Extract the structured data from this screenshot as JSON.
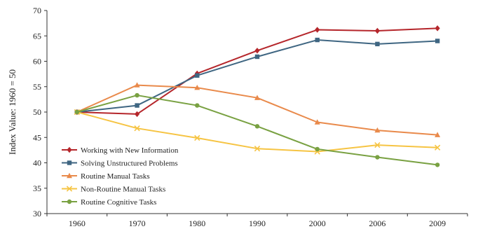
{
  "chart_data": {
    "type": "line",
    "title": "",
    "xlabel": "",
    "ylabel": "Index Value: 1960 = 50",
    "categories": [
      "1960",
      "1970",
      "1980",
      "1990",
      "2000",
      "2006",
      "2009"
    ],
    "ylim": [
      30,
      70
    ],
    "yticks": [
      30,
      35,
      40,
      45,
      50,
      55,
      60,
      65,
      70
    ],
    "grid": false,
    "legend_position": "bottom-left",
    "series": [
      {
        "name": "Working with New Information",
        "color": "#b5262b",
        "marker": "diamond",
        "values": [
          50,
          49.6,
          57.6,
          62.1,
          66.2,
          66.0,
          66.5
        ]
      },
      {
        "name": "Solving Unstructured Problems",
        "color": "#3f6682",
        "marker": "square",
        "values": [
          50,
          51.3,
          57.2,
          60.9,
          64.2,
          63.4,
          64.0
        ]
      },
      {
        "name": "Routine Manual Tasks",
        "color": "#e98a4b",
        "marker": "triangle",
        "values": [
          50,
          55.3,
          54.8,
          52.8,
          48.0,
          46.4,
          45.5
        ]
      },
      {
        "name": "Non-Routine Manual Tasks",
        "color": "#f6c443",
        "marker": "x",
        "values": [
          50,
          46.8,
          44.9,
          42.8,
          42.2,
          43.5,
          43.0
        ]
      },
      {
        "name": "Routine Cognitive Tasks",
        "color": "#79a142",
        "marker": "circle",
        "values": [
          50,
          53.3,
          51.3,
          47.2,
          42.7,
          41.1,
          39.6
        ]
      }
    ]
  }
}
